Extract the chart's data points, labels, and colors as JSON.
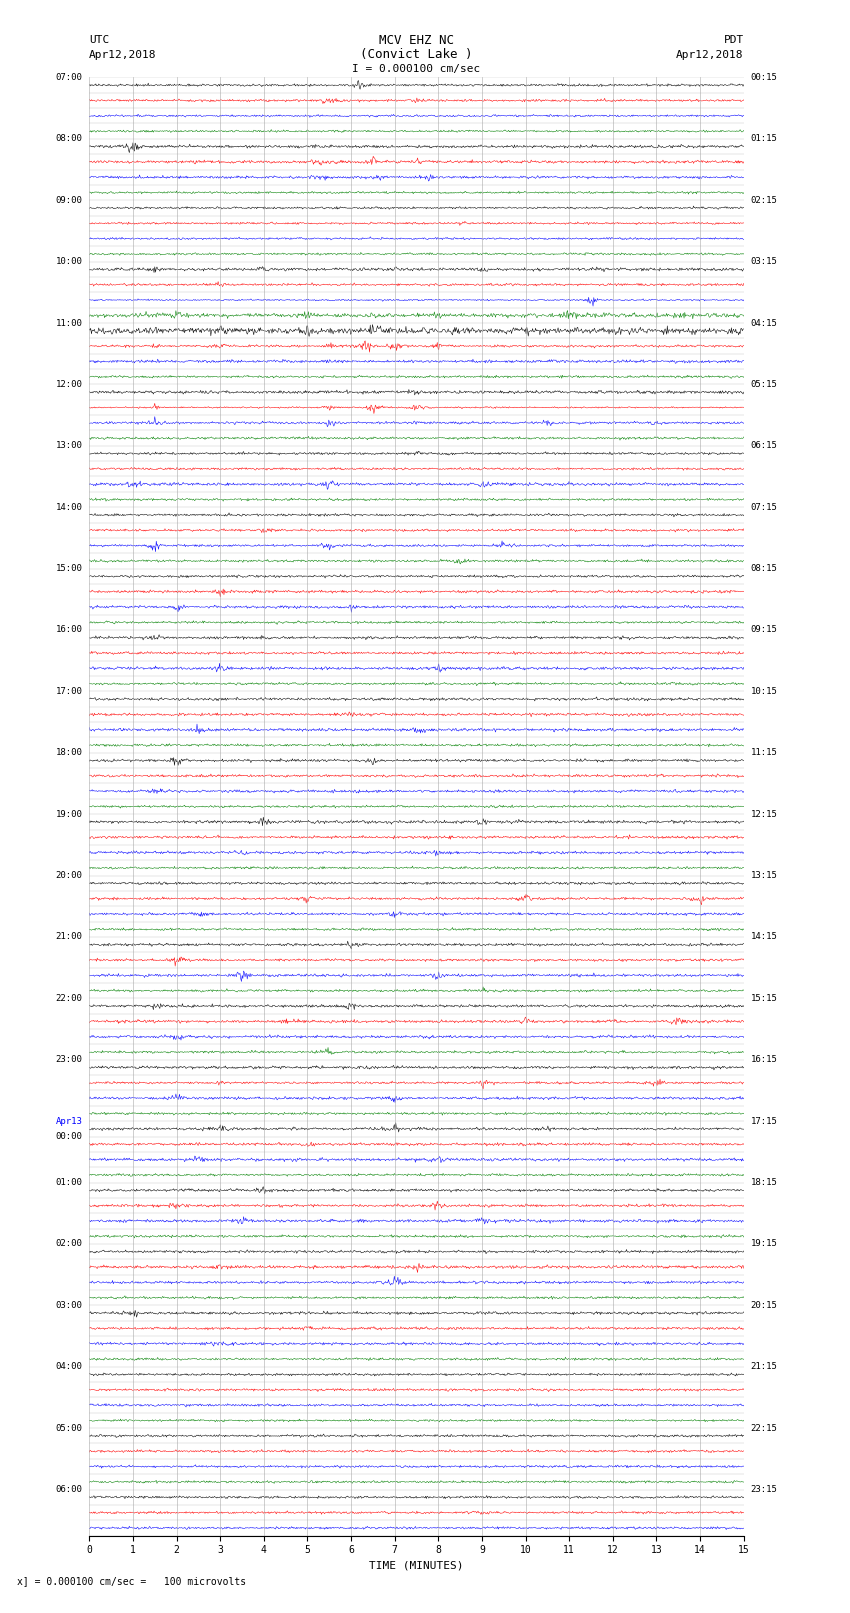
{
  "title_line1": "MCV EHZ NC",
  "title_line2": "(Convict Lake )",
  "scale_label": "I = 0.000100 cm/sec",
  "left_header1": "UTC",
  "left_header2": "Apr12,2018",
  "right_header1": "PDT",
  "right_header2": "Apr12,2018",
  "footer_note": "x] = 0.000100 cm/sec =   100 microvolts",
  "xlabel": "TIME (MINUTES)",
  "xlim": [
    0,
    15
  ],
  "xticks": [
    0,
    1,
    2,
    3,
    4,
    5,
    6,
    7,
    8,
    9,
    10,
    11,
    12,
    13,
    14,
    15
  ],
  "bg_color": "#ffffff",
  "grid_color": "#aaaaaa",
  "trace_colors": [
    "black",
    "red",
    "blue",
    "green"
  ]
}
